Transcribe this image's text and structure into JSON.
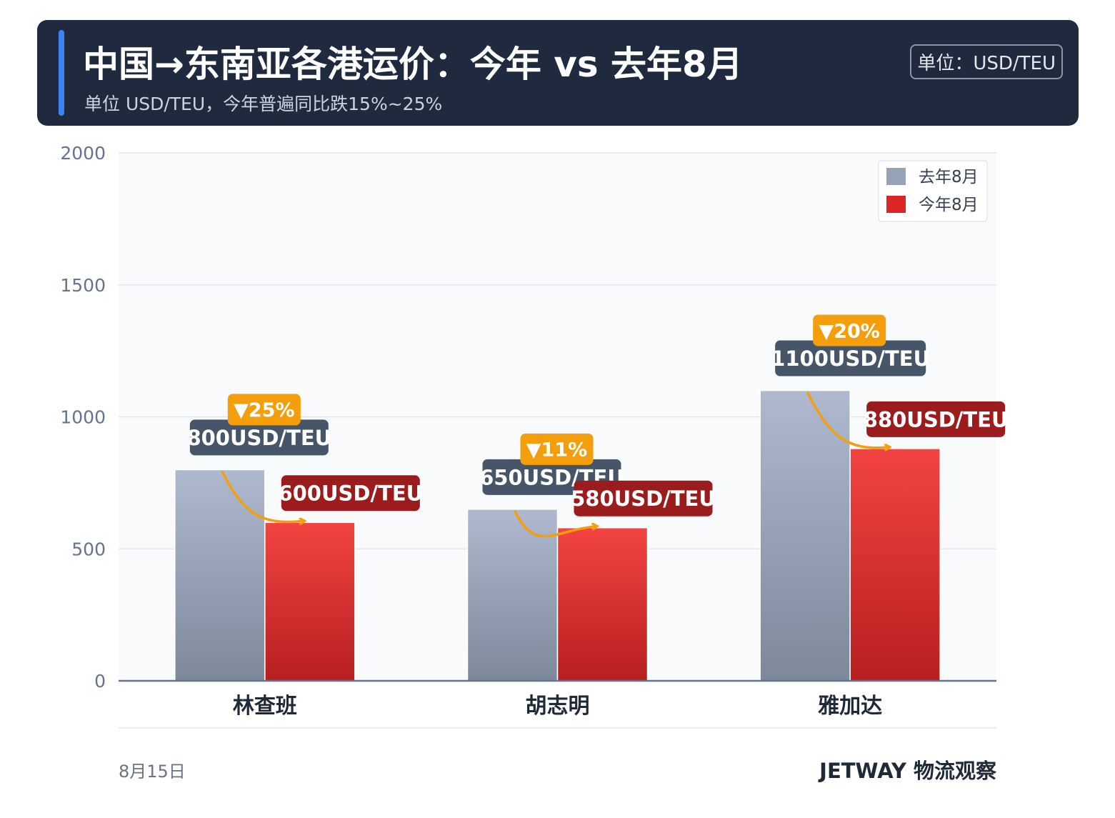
{
  "header": {
    "title": "中国→东南亚各港运价：今年 vs 去年8月",
    "subtitle": "单位 USD/TEU，今年普遍同比跌15%~25%",
    "unit_badge": "单位：USD/TEU"
  },
  "footer": {
    "date": "8月15日",
    "brand": "JETWAY 物流观察"
  },
  "colors": {
    "last_year_top": "#aeb9cf",
    "last_year_bottom": "#7d889b",
    "this_year_top": "#f24443",
    "this_year_bottom": "#b71f1f",
    "last_year_label_bg": "#475569",
    "this_year_label_bg": "#9b1c1c",
    "change_badge_bg": "#f59e0b",
    "arrow": "#f59e0b"
  },
  "chart_data": {
    "type": "bar",
    "categories": [
      "林查班",
      "胡志明",
      "雅加达"
    ],
    "series": [
      {
        "name": "去年8月",
        "values": [
          800,
          650,
          1100
        ],
        "labels": [
          "800USD/TEU",
          "650USD/TEU",
          "1100USD/TEU"
        ]
      },
      {
        "name": "今年8月",
        "values": [
          600,
          580,
          880
        ],
        "labels": [
          "600USD/TEU",
          "580USD/TEU",
          "880USD/TEU"
        ]
      }
    ],
    "changes": [
      "▼25%",
      "▼11%",
      "▼20%"
    ],
    "yticks": [
      "0",
      "500",
      "1000",
      "1500",
      "2000"
    ],
    "ylim": [
      0,
      2000
    ],
    "grid": true,
    "legend": "top-right"
  }
}
